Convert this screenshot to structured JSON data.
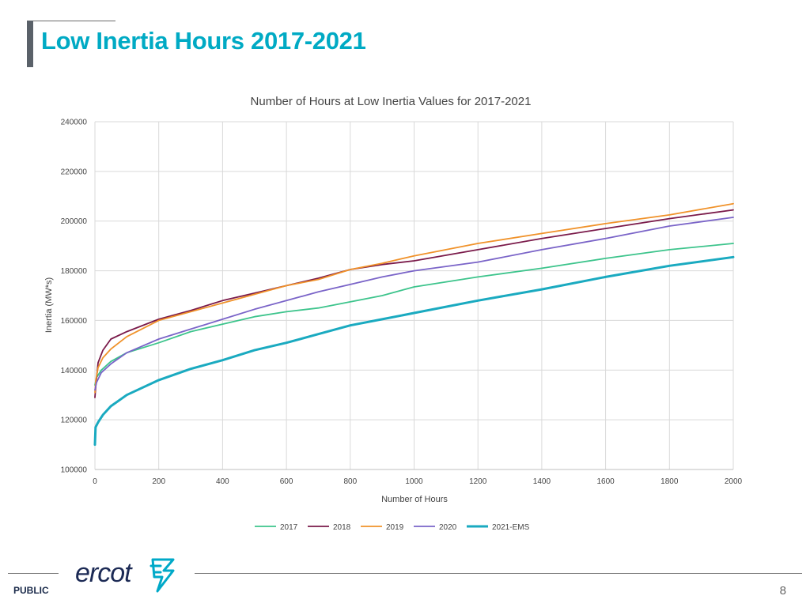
{
  "slide": {
    "title": "Low Inertia Hours 2017-2021",
    "footer_label": "PUBLIC",
    "page_number": "8",
    "logo_text": "ercot"
  },
  "chart_data": {
    "type": "line",
    "title": "Number of Hours at Low Inertia Values for 2017-2021",
    "xlabel": "Number of Hours",
    "ylabel": "Inertia (MW*s)",
    "xlim": [
      0,
      2000
    ],
    "ylim": [
      100000,
      240000
    ],
    "x_ticks": [
      "0",
      "200",
      "400",
      "600",
      "800",
      "1000",
      "1200",
      "1400",
      "1600",
      "1800",
      "2000"
    ],
    "y_ticks": [
      "100000",
      "120000",
      "140000",
      "160000",
      "180000",
      "200000",
      "220000",
      "240000"
    ],
    "grid": true,
    "legend_position": "bottom",
    "series": [
      {
        "name": "2017",
        "color": "#3dc48c",
        "width": 1.8,
        "points": [
          [
            0,
            134000
          ],
          [
            5,
            137000
          ],
          [
            20,
            140000
          ],
          [
            50,
            143500
          ],
          [
            100,
            147000
          ],
          [
            200,
            151000
          ],
          [
            300,
            155500
          ],
          [
            400,
            158500
          ],
          [
            500,
            161500
          ],
          [
            600,
            163500
          ],
          [
            700,
            165000
          ],
          [
            800,
            167500
          ],
          [
            900,
            170000
          ],
          [
            1000,
            173500
          ],
          [
            1200,
            177500
          ],
          [
            1400,
            181000
          ],
          [
            1600,
            185000
          ],
          [
            1800,
            188500
          ],
          [
            2000,
            191000
          ]
        ]
      },
      {
        "name": "2018",
        "color": "#7a1a4a",
        "width": 1.8,
        "points": [
          [
            0,
            129000
          ],
          [
            3,
            134000
          ],
          [
            10,
            143000
          ],
          [
            25,
            148000
          ],
          [
            50,
            152500
          ],
          [
            100,
            155500
          ],
          [
            200,
            160500
          ],
          [
            300,
            164000
          ],
          [
            400,
            168000
          ],
          [
            500,
            171000
          ],
          [
            600,
            174000
          ],
          [
            700,
            177000
          ],
          [
            800,
            180500
          ],
          [
            900,
            182500
          ],
          [
            1000,
            184000
          ],
          [
            1200,
            188500
          ],
          [
            1400,
            193000
          ],
          [
            1600,
            197000
          ],
          [
            1800,
            201000
          ],
          [
            2000,
            204500
          ]
        ]
      },
      {
        "name": "2019",
        "color": "#f0922a",
        "width": 1.8,
        "points": [
          [
            0,
            131000
          ],
          [
            3,
            136000
          ],
          [
            10,
            141000
          ],
          [
            25,
            145000
          ],
          [
            50,
            148500
          ],
          [
            100,
            153500
          ],
          [
            200,
            160000
          ],
          [
            300,
            163500
          ],
          [
            400,
            167000
          ],
          [
            500,
            170500
          ],
          [
            600,
            174000
          ],
          [
            700,
            176500
          ],
          [
            800,
            180500
          ],
          [
            900,
            183000
          ],
          [
            1000,
            186000
          ],
          [
            1200,
            191000
          ],
          [
            1400,
            195000
          ],
          [
            1600,
            199000
          ],
          [
            1800,
            202500
          ],
          [
            2000,
            207000
          ]
        ]
      },
      {
        "name": "2020",
        "color": "#7a64c8",
        "width": 1.8,
        "points": [
          [
            0,
            132000
          ],
          [
            5,
            135000
          ],
          [
            20,
            139000
          ],
          [
            50,
            142500
          ],
          [
            100,
            147000
          ],
          [
            200,
            152500
          ],
          [
            300,
            156500
          ],
          [
            400,
            160500
          ],
          [
            500,
            164500
          ],
          [
            600,
            168000
          ],
          [
            700,
            171500
          ],
          [
            800,
            174500
          ],
          [
            900,
            177500
          ],
          [
            1000,
            180000
          ],
          [
            1200,
            183500
          ],
          [
            1400,
            188500
          ],
          [
            1600,
            193000
          ],
          [
            1800,
            198000
          ],
          [
            2000,
            201500
          ]
        ]
      },
      {
        "name": "2021-EMS",
        "color": "#1aaac0",
        "width": 3,
        "points": [
          [
            0,
            110000
          ],
          [
            2,
            117000
          ],
          [
            10,
            119000
          ],
          [
            25,
            122000
          ],
          [
            50,
            125500
          ],
          [
            100,
            130000
          ],
          [
            200,
            136000
          ],
          [
            300,
            140500
          ],
          [
            400,
            144000
          ],
          [
            500,
            148000
          ],
          [
            600,
            151000
          ],
          [
            700,
            154500
          ],
          [
            800,
            158000
          ],
          [
            900,
            160500
          ],
          [
            1000,
            163000
          ],
          [
            1200,
            168000
          ],
          [
            1400,
            172500
          ],
          [
            1600,
            177500
          ],
          [
            1800,
            182000
          ],
          [
            2000,
            185500
          ]
        ]
      }
    ]
  }
}
